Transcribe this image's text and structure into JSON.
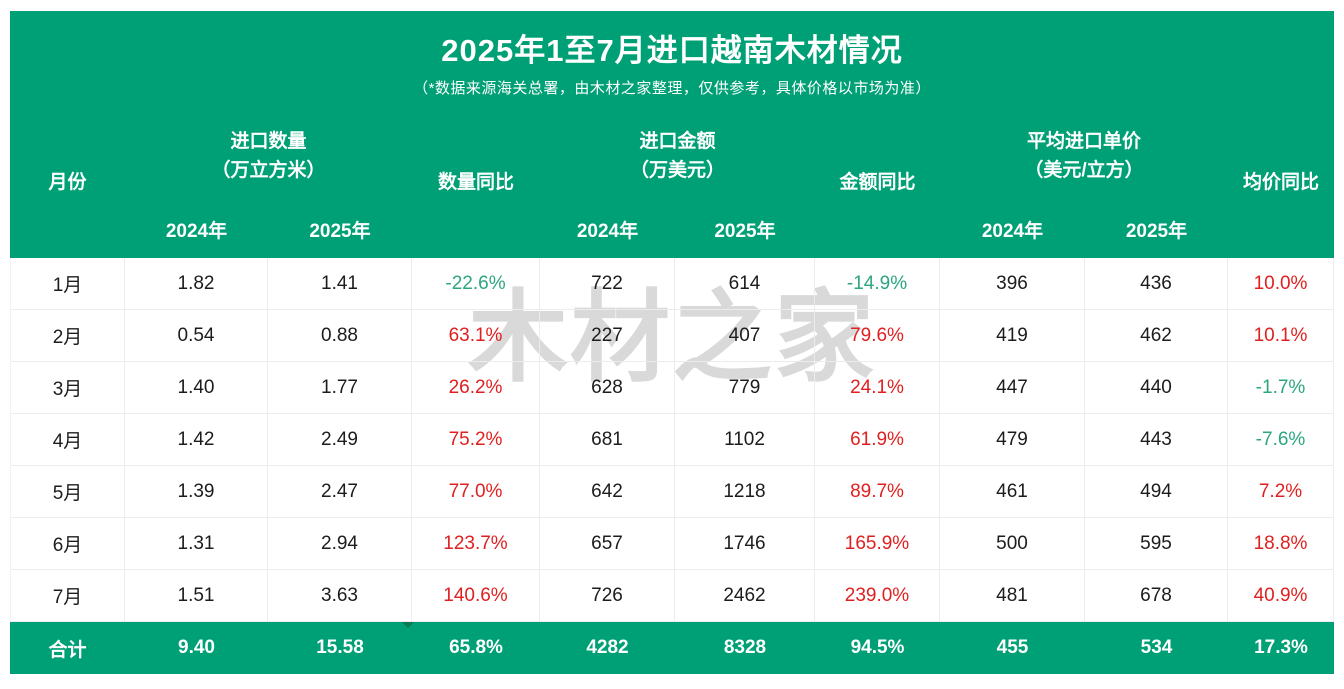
{
  "header": {
    "col_month": "月份",
    "group_qty_line1": "进口数量",
    "group_qty_line2": "（万立方米）",
    "qty_yoy": "数量同比",
    "group_amt_line1": "进口金额",
    "group_amt_line2": "（万美元）",
    "amt_yoy": "金额同比",
    "group_price_line1": "平均进口单价",
    "group_price_line2": "（美元/立方）",
    "price_yoy": "均价同比",
    "year_2024": "2024年",
    "year_2025": "2025年"
  },
  "watermark": "木材之家",
  "colors": {
    "brand_green": "#00a076",
    "positive_red": "#e02020",
    "negative_green": "#2ca580",
    "watermark_gray": "#d9d9d9"
  },
  "chart_data": {
    "type": "table",
    "title": "2025年1至7月进口越南木材情况",
    "subtitle": "（*数据来源海关总署，由木材之家整理，仅供参考，具体价格以市场为准）",
    "column_groups": [
      "月份",
      "进口数量（万立方米）",
      "数量同比",
      "进口金额（万美元）",
      "金额同比",
      "平均进口单价（美元/立方）",
      "均价同比"
    ],
    "columns": [
      "月份",
      "进口数量2024年",
      "进口数量2025年",
      "数量同比",
      "进口金额2024年",
      "进口金额2025年",
      "金额同比",
      "平均单价2024年",
      "平均单价2025年",
      "均价同比"
    ],
    "rows": [
      {
        "month": "1月",
        "values": [
          "1.82",
          "1.41",
          "-22.6%",
          "722",
          "614",
          "-14.9%",
          "396",
          "436",
          "10.0%"
        ]
      },
      {
        "month": "2月",
        "values": [
          "0.54",
          "0.88",
          "63.1%",
          "227",
          "407",
          "79.6%",
          "419",
          "462",
          "10.1%"
        ]
      },
      {
        "month": "3月",
        "values": [
          "1.40",
          "1.77",
          "26.2%",
          "628",
          "779",
          "24.1%",
          "447",
          "440",
          "-1.7%"
        ]
      },
      {
        "month": "4月",
        "values": [
          "1.42",
          "2.49",
          "75.2%",
          "681",
          "1102",
          "61.9%",
          "479",
          "443",
          "-7.6%"
        ]
      },
      {
        "month": "5月",
        "values": [
          "1.39",
          "2.47",
          "77.0%",
          "642",
          "1218",
          "89.7%",
          "461",
          "494",
          "7.2%"
        ]
      },
      {
        "month": "6月",
        "values": [
          "1.31",
          "2.94",
          "123.7%",
          "657",
          "1746",
          "165.9%",
          "500",
          "595",
          "18.8%"
        ]
      },
      {
        "month": "7月",
        "values": [
          "1.51",
          "3.63",
          "140.6%",
          "726",
          "2462",
          "239.0%",
          "481",
          "678",
          "40.9%"
        ]
      }
    ],
    "total": {
      "label": "合计",
      "values": [
        "9.40",
        "15.58",
        "65.8%",
        "4282",
        "8328",
        "94.5%",
        "455",
        "534",
        "17.3%"
      ]
    }
  }
}
